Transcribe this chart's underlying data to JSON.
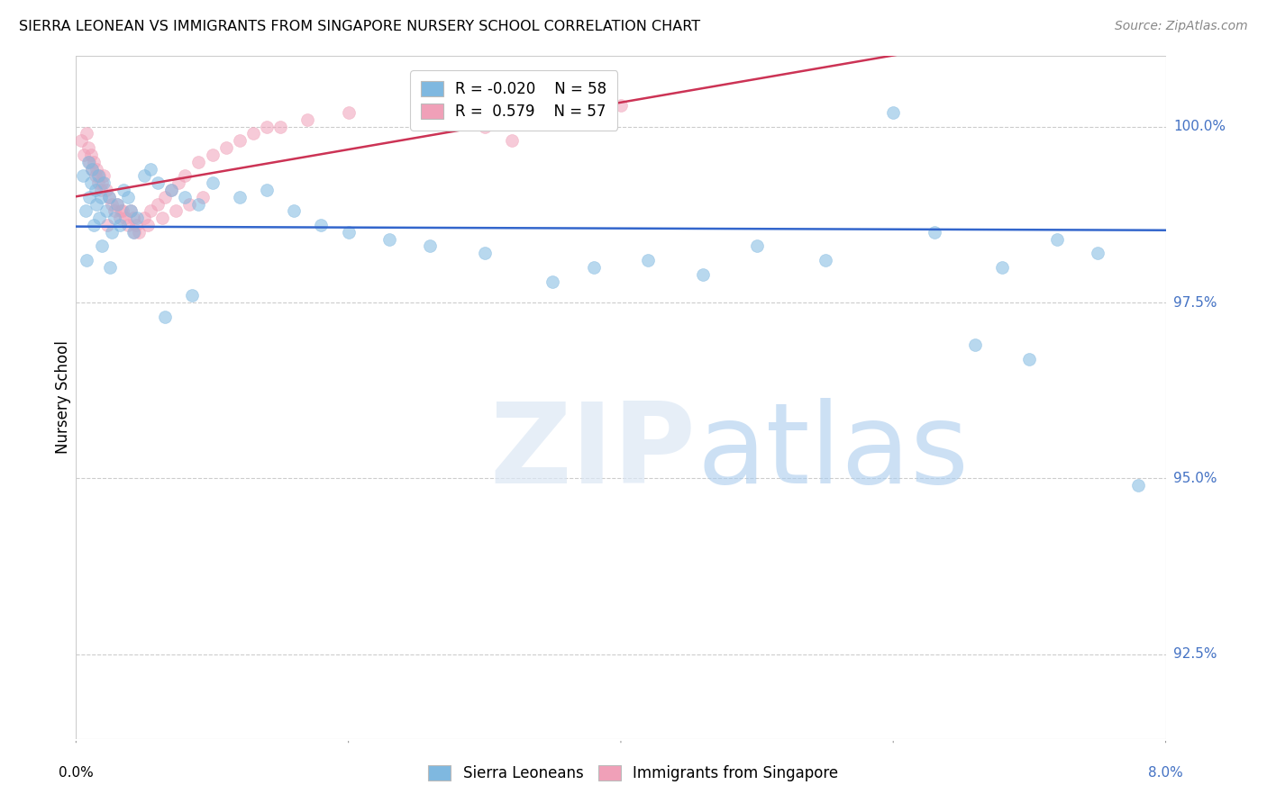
{
  "title": "SIERRA LEONEAN VS IMMIGRANTS FROM SINGAPORE NURSERY SCHOOL CORRELATION CHART",
  "source": "Source: ZipAtlas.com",
  "ylabel": "Nursery School",
  "ytick_labels": [
    "92.5%",
    "95.0%",
    "97.5%",
    "100.0%"
  ],
  "ytick_values": [
    92.5,
    95.0,
    97.5,
    100.0
  ],
  "xmin": 0.0,
  "xmax": 8.0,
  "ymin": 91.3,
  "ymax": 101.0,
  "legend_blue_R": "-0.020",
  "legend_blue_N": "58",
  "legend_pink_R": "0.579",
  "legend_pink_N": "57",
  "blue_color": "#7fb8e0",
  "pink_color": "#f0a0b8",
  "blue_line_color": "#3366cc",
  "pink_line_color": "#cc3355",
  "blue_scatter_x": [
    0.05,
    0.07,
    0.09,
    0.1,
    0.11,
    0.12,
    0.13,
    0.14,
    0.15,
    0.16,
    0.17,
    0.18,
    0.2,
    0.22,
    0.24,
    0.26,
    0.28,
    0.3,
    0.32,
    0.35,
    0.38,
    0.4,
    0.45,
    0.5,
    0.55,
    0.6,
    0.7,
    0.8,
    0.9,
    1.0,
    1.2,
    1.4,
    1.6,
    1.8,
    2.0,
    2.3,
    2.6,
    3.0,
    3.5,
    3.8,
    4.2,
    4.6,
    5.0,
    5.5,
    6.0,
    6.3,
    6.6,
    6.8,
    7.0,
    7.2,
    7.5,
    7.8,
    0.08,
    0.19,
    0.25,
    0.42,
    0.65,
    0.85
  ],
  "blue_scatter_y": [
    99.3,
    98.8,
    99.5,
    99.0,
    99.2,
    99.4,
    98.6,
    99.1,
    98.9,
    99.3,
    98.7,
    99.0,
    99.2,
    98.8,
    99.0,
    98.5,
    98.7,
    98.9,
    98.6,
    99.1,
    99.0,
    98.8,
    98.7,
    99.3,
    99.4,
    99.2,
    99.1,
    99.0,
    98.9,
    99.2,
    99.0,
    99.1,
    98.8,
    98.6,
    98.5,
    98.4,
    98.3,
    98.2,
    97.8,
    98.0,
    98.1,
    97.9,
    98.3,
    98.1,
    100.2,
    98.5,
    96.9,
    98.0,
    96.7,
    98.4,
    98.2,
    94.9,
    98.1,
    98.3,
    98.0,
    98.5,
    97.3,
    97.6
  ],
  "pink_scatter_x": [
    0.04,
    0.06,
    0.08,
    0.09,
    0.1,
    0.11,
    0.12,
    0.13,
    0.14,
    0.15,
    0.16,
    0.17,
    0.18,
    0.19,
    0.2,
    0.22,
    0.24,
    0.26,
    0.28,
    0.3,
    0.32,
    0.34,
    0.36,
    0.38,
    0.4,
    0.42,
    0.44,
    0.46,
    0.5,
    0.55,
    0.6,
    0.65,
    0.7,
    0.75,
    0.8,
    0.9,
    1.0,
    1.1,
    1.2,
    1.3,
    1.5,
    1.7,
    2.0,
    2.5,
    3.0,
    3.2,
    3.5,
    4.0,
    0.23,
    0.33,
    0.43,
    0.53,
    0.63,
    0.73,
    0.83,
    0.93,
    1.4
  ],
  "pink_scatter_y": [
    99.8,
    99.6,
    99.9,
    99.7,
    99.5,
    99.6,
    99.4,
    99.5,
    99.3,
    99.4,
    99.2,
    99.3,
    99.1,
    99.2,
    99.3,
    99.1,
    99.0,
    98.9,
    98.8,
    98.9,
    98.7,
    98.8,
    98.7,
    98.6,
    98.8,
    98.7,
    98.6,
    98.5,
    98.7,
    98.8,
    98.9,
    99.0,
    99.1,
    99.2,
    99.3,
    99.5,
    99.6,
    99.7,
    99.8,
    99.9,
    100.0,
    100.1,
    100.2,
    100.1,
    100.0,
    99.8,
    100.2,
    100.3,
    98.6,
    98.8,
    98.5,
    98.6,
    98.7,
    98.8,
    98.9,
    99.0,
    100.0
  ],
  "marker_size": 100,
  "xtick_positions": [
    0.0,
    2.0,
    4.0,
    6.0,
    8.0
  ]
}
